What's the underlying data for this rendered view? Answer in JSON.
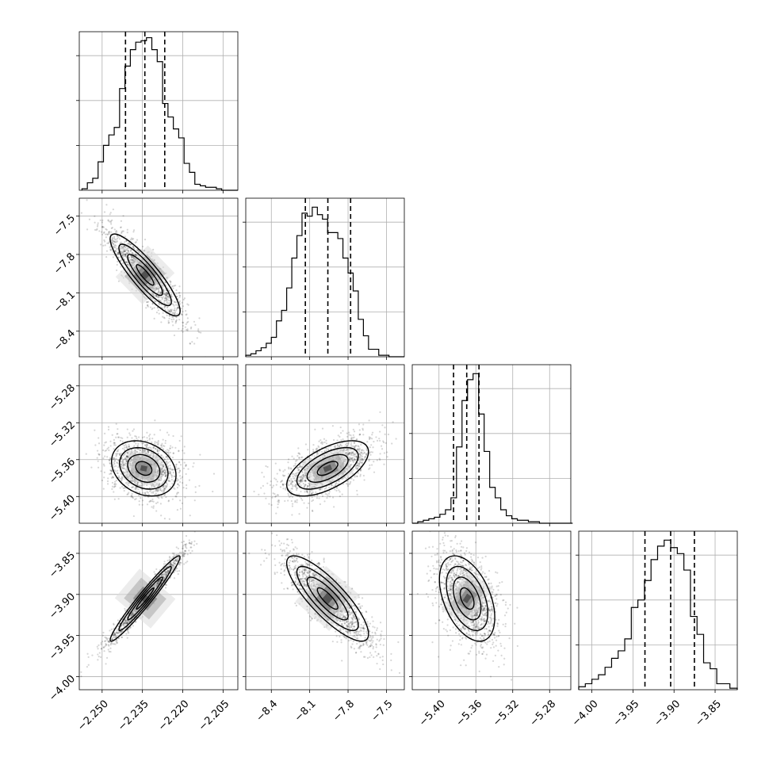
{
  "chart_data": {
    "type": "corner",
    "parameters": [
      {
        "range": [
          -2.2585,
          -2.1995
        ],
        "ticks": [
          -2.25,
          -2.235,
          -2.22,
          -2.205
        ],
        "tick_labels": [
          "−2.250",
          "−2.235",
          "−2.220",
          "−2.205"
        ],
        "quantiles": [
          -2.2413,
          -2.2341,
          -2.2267
        ],
        "hist_bins": [
          -2.2575,
          -2.2555,
          -2.2535,
          -2.2515,
          -2.2495,
          -2.2475,
          -2.2455,
          -2.2435,
          -2.2415,
          -2.2395,
          -2.2375,
          -2.2355,
          -2.2335,
          -2.2315,
          -2.2295,
          -2.2275,
          -2.2255,
          -2.2235,
          -2.2215,
          -2.2195,
          -2.2175,
          -2.2155,
          -2.2135,
          -2.2115,
          -2.2095,
          -2.2075,
          -2.2055,
          -2.2035,
          -2.2015,
          -2.1995
        ],
        "hist_counts": [
          0.01,
          0.05,
          0.08,
          0.19,
          0.3,
          0.37,
          0.42,
          0.68,
          0.83,
          0.94,
          0.99,
          1.0,
          1.02,
          0.94,
          0.86,
          0.58,
          0.49,
          0.41,
          0.35,
          0.18,
          0.12,
          0.04,
          0.03,
          0.02,
          0.02,
          0.01,
          0.0,
          0.0,
          0.0
        ]
      },
      {
        "range": [
          -8.6,
          -7.36
        ],
        "ticks": [
          -8.4,
          -8.1,
          -7.8,
          -7.5
        ],
        "tick_labels": [
          "−8.4",
          "−8.1",
          "−7.8",
          "−7.5"
        ],
        "quantiles": [
          -8.134,
          -7.958,
          -7.78
        ],
        "hist_bins": [
          -8.6,
          -8.56,
          -8.52,
          -8.48,
          -8.44,
          -8.4,
          -8.36,
          -8.32,
          -8.28,
          -8.24,
          -8.2,
          -8.16,
          -8.12,
          -8.08,
          -8.04,
          -8.0,
          -7.96,
          -7.92,
          -7.88,
          -7.84,
          -7.8,
          -7.76,
          -7.72,
          -7.68,
          -7.64,
          -7.6,
          -7.56,
          -7.52,
          -7.48,
          -7.44,
          -7.4,
          -7.36
        ],
        "hist_counts": [
          0.01,
          0.02,
          0.04,
          0.06,
          0.09,
          0.13,
          0.24,
          0.31,
          0.46,
          0.66,
          0.81,
          0.96,
          0.94,
          1.0,
          0.95,
          0.92,
          0.83,
          0.83,
          0.79,
          0.66,
          0.56,
          0.44,
          0.25,
          0.14,
          0.05,
          0.05,
          0.01,
          0.01,
          0.0,
          0.0,
          0.0
        ]
      },
      {
        "range": [
          -5.429,
          -5.257
        ],
        "ticks": [
          -5.4,
          -5.36,
          -5.32,
          -5.28
        ],
        "tick_labels": [
          "−5.40",
          "−5.36",
          "−5.32",
          "−5.28"
        ],
        "quantiles": [
          -5.3842,
          -5.3699,
          -5.3566
        ],
        "hist_bins": [
          -5.429,
          -5.423,
          -5.417,
          -5.411,
          -5.405,
          -5.399,
          -5.393,
          -5.387,
          -5.381,
          -5.375,
          -5.369,
          -5.363,
          -5.357,
          -5.351,
          -5.345,
          -5.339,
          -5.333,
          -5.327,
          -5.321,
          -5.315,
          -5.309,
          -5.303,
          -5.297,
          -5.291,
          -5.285,
          -5.279,
          -5.273,
          -5.267,
          -5.261,
          -5.255
        ],
        "hist_counts": [
          0.0,
          0.01,
          0.02,
          0.03,
          0.04,
          0.06,
          0.09,
          0.17,
          0.51,
          0.82,
          0.96,
          1.0,
          0.73,
          0.48,
          0.24,
          0.17,
          0.09,
          0.05,
          0.03,
          0.02,
          0.02,
          0.01,
          0.01,
          0.0,
          0.0,
          0.0,
          0.0,
          0.0,
          0.0
        ]
      },
      {
        "range": [
          -4.016,
          -3.823
        ],
        "ticks": [
          -4.0,
          -3.95,
          -3.9,
          -3.85
        ],
        "tick_labels": [
          "−4.00",
          "−3.95",
          "−3.90",
          "−3.85"
        ],
        "quantiles": [
          -3.9354,
          -3.9041,
          -3.8752
        ],
        "hist_bins": [
          -4.016,
          -4.008,
          -4.0,
          -3.992,
          -3.984,
          -3.976,
          -3.968,
          -3.96,
          -3.952,
          -3.944,
          -3.936,
          -3.928,
          -3.92,
          -3.912,
          -3.904,
          -3.896,
          -3.888,
          -3.88,
          -3.872,
          -3.864,
          -3.856,
          -3.848,
          -3.84,
          -3.832,
          -3.823
        ],
        "hist_counts": [
          0.02,
          0.04,
          0.07,
          0.1,
          0.15,
          0.21,
          0.26,
          0.34,
          0.55,
          0.6,
          0.73,
          0.87,
          0.96,
          1.0,
          0.95,
          0.91,
          0.8,
          0.49,
          0.37,
          0.18,
          0.14,
          0.04,
          0.04,
          0.01
        ]
      }
    ],
    "pairs": [
      {
        "x": 0,
        "y": 1,
        "mean": [
          -2.234,
          -7.96
        ],
        "sd": [
          0.0065,
          0.16
        ],
        "corr": -0.88
      },
      {
        "x": 0,
        "y": 2,
        "mean": [
          -2.2345,
          -5.3695
        ],
        "sd": [
          0.006,
          0.015
        ],
        "corr": -0.25
      },
      {
        "x": 1,
        "y": 2,
        "mean": [
          -7.96,
          -5.3695
        ],
        "sd": [
          0.16,
          0.015
        ],
        "corr": 0.6
      },
      {
        "x": 0,
        "y": 3,
        "mean": [
          -2.234,
          -3.905
        ],
        "sd": [
          0.0065,
          0.026
        ],
        "corr": 0.97
      },
      {
        "x": 1,
        "y": 3,
        "mean": [
          -7.96,
          -3.905
        ],
        "sd": [
          0.16,
          0.026
        ],
        "corr": -0.83
      },
      {
        "x": 2,
        "y": 3,
        "mean": [
          -5.3695,
          -3.905
        ],
        "sd": [
          0.015,
          0.026
        ],
        "corr": -0.45
      }
    ],
    "grid": true
  }
}
